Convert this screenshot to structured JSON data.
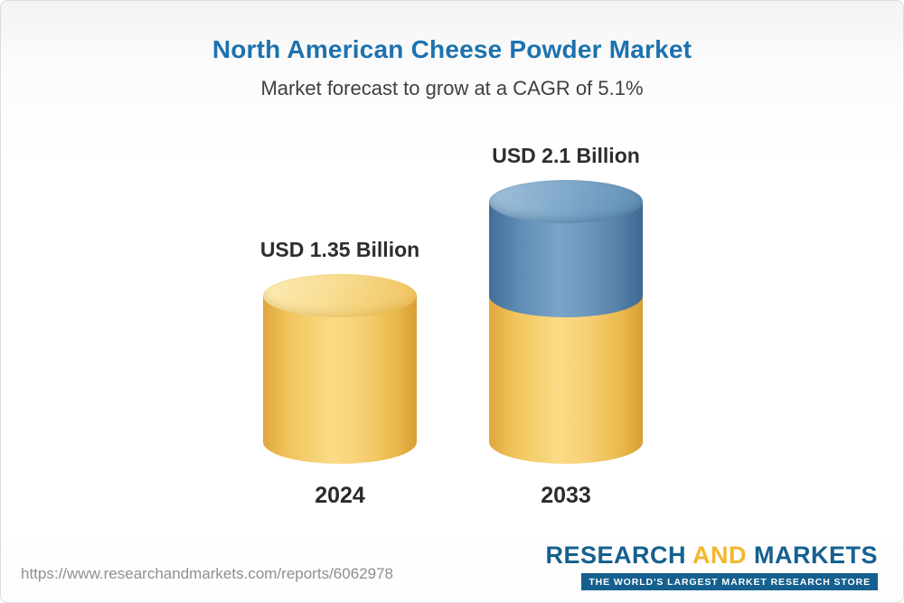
{
  "header": {
    "title": "North American Cheese Powder Market",
    "subtitle": "Market forecast to grow at a CAGR of 5.1%"
  },
  "chart_data": {
    "type": "bar",
    "variant": "3d-cylinder",
    "title": "North American Cheese Powder Market",
    "subtitle": "Market forecast to grow at a CAGR of 5.1%",
    "cagr_percent": 5.1,
    "unit": "USD Billion",
    "categories": [
      "2024",
      "2033"
    ],
    "values": [
      1.35,
      2.1
    ],
    "value_labels": [
      "USD 1.35 Billion",
      "USD 2.1 Billion"
    ],
    "colors": {
      "base_segment": "#F2C65F",
      "growth_segment": "#6293BC",
      "title": "#1C72AE"
    },
    "grid": false,
    "legend_position": "none"
  },
  "footer": {
    "source_url": "https://www.researchandmarkets.com/reports/6062978",
    "logo": {
      "word1": "RESEARCH",
      "word2": "AND",
      "word3": "MARKETS",
      "tagline": "THE WORLD'S LARGEST MARKET RESEARCH STORE"
    }
  }
}
